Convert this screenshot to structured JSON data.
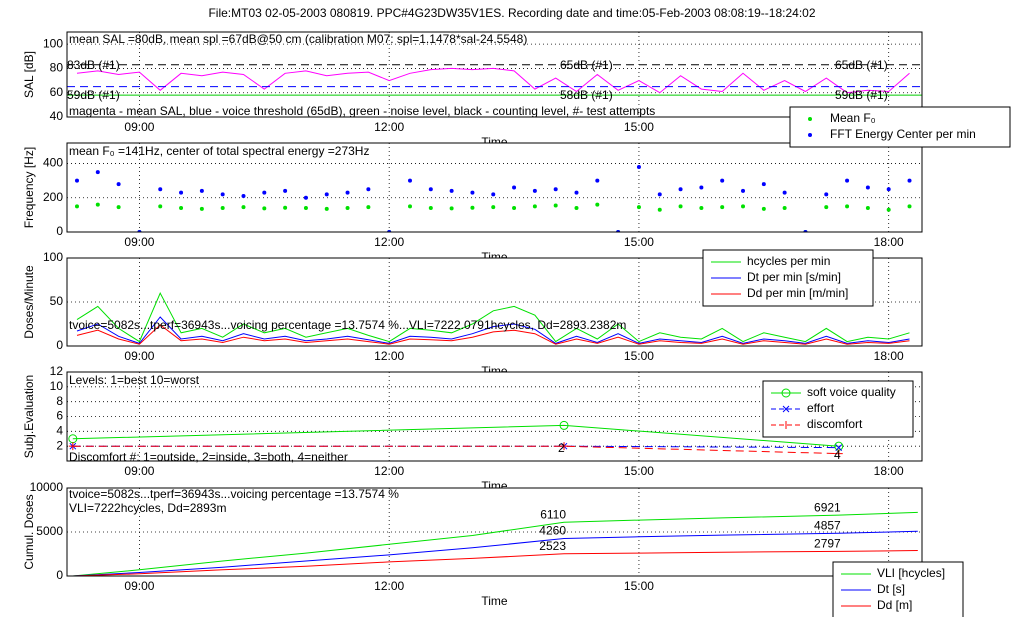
{
  "title": "File:MT03 02-05-2003 080819. PPC#4G23DW35V1ES. Recording date and time:05-Feb-2003 08:08:19--18:24:02",
  "chart_data": [
    {
      "type": "line",
      "ylabel": "SAL [dB]",
      "xlabel": "Time",
      "grid": true,
      "xlim": [
        8.13,
        18.4
      ],
      "xticks": [
        {
          "value": 9,
          "label": "09:00"
        },
        {
          "value": 12,
          "label": "12:00"
        },
        {
          "value": 15,
          "label": "15:00"
        },
        {
          "value": 18,
          "label": "18:00"
        }
      ],
      "ylim": [
        40,
        110
      ],
      "yticks": [
        40,
        60,
        80,
        100
      ],
      "x": [
        8.25,
        8.5,
        8.75,
        9,
        9.25,
        9.5,
        9.75,
        10,
        10.25,
        10.5,
        10.75,
        11,
        11.25,
        11.5,
        11.75,
        12,
        12.25,
        12.5,
        12.75,
        13,
        13.25,
        13.5,
        13.75,
        14,
        14.25,
        14.5,
        14.75,
        15,
        15.25,
        15.5,
        15.75,
        16,
        16.25,
        16.5,
        16.75,
        17,
        17.25,
        17.5,
        17.75,
        18,
        18.25
      ],
      "series": [
        {
          "color": "#ff00ff",
          "values": [
            76,
            78,
            75,
            77,
            62,
            76,
            74,
            77,
            75,
            63,
            76,
            78,
            74,
            76,
            77,
            70,
            76,
            79,
            80,
            79,
            80,
            78,
            63,
            72,
            61,
            75,
            62,
            70,
            60,
            74,
            63,
            61,
            76,
            62,
            70,
            61,
            72,
            60,
            62,
            61,
            76
          ]
        },
        {
          "color": "#000000",
          "dash": true,
          "x": [
            8.13,
            18.4
          ],
          "values": [
            83,
            83
          ]
        },
        {
          "color": "#0000ff",
          "dash": true,
          "x": [
            8.13,
            18.4
          ],
          "values": [
            65,
            65
          ]
        },
        {
          "color": "#00cc00",
          "x": [
            8.13,
            18.4
          ],
          "values": [
            58,
            58
          ]
        }
      ],
      "annotations": [
        "mean SAL =80dB, mean spl =67dB@50 cm (calibration M07: spl=1.1478*sal-24.5548)",
        "83dB (#1)",
        "65dB (#1)",
        "65dB (#1)",
        "59dB (#1)",
        "58dB (#1)",
        "59dB (#1)",
        "magenta - mean SAL, blue - voice threshold (65dB), green - noise level, black - counting level, #- test attempts"
      ]
    },
    {
      "type": "scatter",
      "ylabel": "Frequency [Hz]",
      "xlabel": "Time",
      "grid": true,
      "xlim": [
        8.13,
        18.4
      ],
      "xticks": [
        {
          "value": 9,
          "label": "09:00"
        },
        {
          "value": 12,
          "label": "12:00"
        },
        {
          "value": 15,
          "label": "15:00"
        },
        {
          "value": 18,
          "label": "18:00"
        }
      ],
      "ylim": [
        0,
        520
      ],
      "yticks": [
        0,
        200,
        400
      ],
      "x": [
        8.25,
        8.5,
        8.75,
        9,
        9.25,
        9.5,
        9.75,
        10,
        10.25,
        10.5,
        10.75,
        11,
        11.25,
        11.5,
        11.75,
        12,
        12.25,
        12.5,
        12.75,
        13,
        13.25,
        13.5,
        13.75,
        14,
        14.25,
        14.5,
        14.75,
        15,
        15.25,
        15.5,
        15.75,
        16,
        16.25,
        16.5,
        16.75,
        17,
        17.25,
        17.5,
        17.75,
        18,
        18.25
      ],
      "series": [
        {
          "name": "Mean F₀",
          "color": "#00e000",
          "values": [
            150,
            160,
            145,
            0,
            150,
            140,
            135,
            140,
            145,
            138,
            142,
            140,
            135,
            140,
            145,
            0,
            150,
            140,
            138,
            142,
            145,
            140,
            150,
            155,
            140,
            160,
            0,
            145,
            130,
            150,
            140,
            145,
            150,
            135,
            140,
            0,
            145,
            150,
            140,
            130,
            150
          ]
        },
        {
          "name": "FFT Energy Center per min",
          "color": "#0000ff",
          "values": [
            300,
            350,
            280,
            0,
            250,
            230,
            240,
            220,
            210,
            230,
            240,
            200,
            220,
            230,
            250,
            0,
            300,
            250,
            240,
            230,
            220,
            260,
            240,
            250,
            230,
            300,
            0,
            380,
            220,
            250,
            260,
            300,
            240,
            280,
            230,
            0,
            220,
            300,
            260,
            250,
            300
          ]
        }
      ],
      "annotations": [
        "mean F₀ =141Hz, center of total spectral energy =273Hz"
      ]
    },
    {
      "type": "line",
      "ylabel": "Doses/Minute",
      "xlabel": "Time",
      "grid": true,
      "xlim": [
        8.13,
        18.4
      ],
      "xticks": [
        {
          "value": 9,
          "label": "09:00"
        },
        {
          "value": 12,
          "label": "12:00"
        },
        {
          "value": 15,
          "label": "15:00"
        },
        {
          "value": 18,
          "label": "18:00"
        }
      ],
      "ylim": [
        0,
        100
      ],
      "yticks": [
        0,
        50,
        100
      ],
      "x": [
        8.25,
        8.5,
        8.75,
        9,
        9.25,
        9.5,
        9.75,
        10,
        10.25,
        10.5,
        10.75,
        11,
        11.25,
        11.5,
        11.75,
        12,
        12.25,
        12.5,
        12.75,
        13,
        13.25,
        13.5,
        13.75,
        14,
        14.25,
        14.5,
        14.75,
        15,
        15.25,
        15.5,
        15.75,
        16,
        16.25,
        16.5,
        16.75,
        17,
        17.25,
        17.5,
        17.75,
        18,
        18.25
      ],
      "series": [
        {
          "name": "hcycles per min",
          "color": "#00e000",
          "values": [
            30,
            45,
            20,
            5,
            60,
            15,
            20,
            10,
            25,
            15,
            20,
            10,
            15,
            20,
            12,
            5,
            20,
            18,
            15,
            25,
            40,
            45,
            35,
            5,
            20,
            8,
            25,
            5,
            15,
            10,
            8,
            20,
            5,
            15,
            10,
            5,
            20,
            5,
            10,
            8,
            15
          ]
        },
        {
          "name": "Dt per min [s/min]",
          "color": "#0000ff",
          "values": [
            17,
            25,
            11,
            3,
            33,
            8,
            11,
            6,
            14,
            8,
            11,
            6,
            8,
            11,
            7,
            3,
            11,
            10,
            8,
            14,
            22,
            25,
            19,
            3,
            11,
            4,
            14,
            3,
            8,
            6,
            4,
            11,
            3,
            8,
            6,
            3,
            11,
            3,
            6,
            4,
            8
          ]
        },
        {
          "name": "Dd per min [m/min]",
          "color": "#ff0000",
          "values": [
            12,
            18,
            8,
            2,
            24,
            6,
            8,
            4,
            10,
            6,
            8,
            4,
            6,
            8,
            5,
            2,
            8,
            7,
            6,
            10,
            16,
            18,
            14,
            2,
            8,
            3,
            10,
            2,
            6,
            4,
            3,
            8,
            2,
            6,
            4,
            2,
            8,
            2,
            4,
            3,
            6
          ]
        }
      ],
      "annotations": [
        "tvoice=5082s...tperf=36943s...voicing percentage =13.7574 %...VLI=7222.0791hcycles, Dd=2893.2382m"
      ]
    },
    {
      "type": "line",
      "ylabel": "Subj.Evaluation",
      "xlabel": "Time",
      "grid": true,
      "xlim": [
        8.13,
        18.4
      ],
      "xticks": [
        {
          "value": 9,
          "label": "09:00"
        },
        {
          "value": 12,
          "label": "12:00"
        },
        {
          "value": 15,
          "label": "15:00"
        },
        {
          "value": 18,
          "label": "18:00"
        }
      ],
      "ylim": [
        0,
        12
      ],
      "yticks": [
        2,
        4,
        6,
        8,
        10,
        12
      ],
      "series": [
        {
          "name": "soft voice quality",
          "color": "#00e000",
          "marker": "o",
          "x": [
            8.2,
            14.1,
            17.4
          ],
          "values": [
            3,
            4.8,
            2
          ]
        },
        {
          "name": "effort",
          "color": "#0000ff",
          "marker": "x",
          "dash": true,
          "x": [
            8.2,
            14.1,
            17.4
          ],
          "values": [
            2,
            2,
            1.8
          ]
        },
        {
          "name": "discomfort",
          "color": "#ff0000",
          "marker": "+",
          "dash": true,
          "x": [
            8.2,
            14.1,
            17.4
          ],
          "values": [
            2,
            2,
            1
          ]
        }
      ],
      "annotations": [
        "Levels: 1=best 10=worst",
        "Discomfort #: 1=outside, 2=inside, 3=both, 4=neither",
        "2",
        "4"
      ]
    },
    {
      "type": "line",
      "ylabel": "Cumul. Doses",
      "xlabel": "Time",
      "grid": true,
      "xlim": [
        8.13,
        18.4
      ],
      "xticks": [
        {
          "value": 9,
          "label": "09:00"
        },
        {
          "value": 12,
          "label": "12:00"
        },
        {
          "value": 15,
          "label": "15:00"
        },
        {
          "value": 18,
          "label": "18:00"
        }
      ],
      "ylim": [
        0,
        10000
      ],
      "yticks": [
        0,
        5000,
        10000
      ],
      "x": [
        8.2,
        9,
        10,
        11,
        12,
        13,
        14.1,
        15,
        16,
        17.4,
        18.35
      ],
      "series": [
        {
          "name": "VLI [hcycles]",
          "color": "#00e000",
          "values": [
            0,
            700,
            1700,
            2600,
            3600,
            4600,
            6110,
            6350,
            6600,
            6921,
            7222
          ],
          "value_labels": [
            null,
            null,
            null,
            null,
            null,
            null,
            "6110",
            null,
            null,
            "6921",
            null
          ]
        },
        {
          "name": "Dt [s]",
          "color": "#0000ff",
          "values": [
            0,
            400,
            1000,
            1700,
            2400,
            3200,
            4260,
            4450,
            4650,
            4857,
            5082
          ],
          "value_labels": [
            null,
            null,
            null,
            null,
            null,
            null,
            "4260",
            null,
            null,
            "4857",
            null
          ]
        },
        {
          "name": "Dd [m]",
          "color": "#ff0000",
          "values": [
            0,
            250,
            700,
            1100,
            1600,
            2000,
            2523,
            2600,
            2700,
            2797,
            2893
          ],
          "value_labels": [
            null,
            null,
            null,
            null,
            null,
            null,
            "2523",
            null,
            null,
            "2797",
            null
          ]
        }
      ],
      "annotations": [
        "tvoice=5082s...tperf=36943s...voicing percentage =13.7574 %",
        "VLI=7222hcycles, Dd=2893m"
      ]
    }
  ]
}
